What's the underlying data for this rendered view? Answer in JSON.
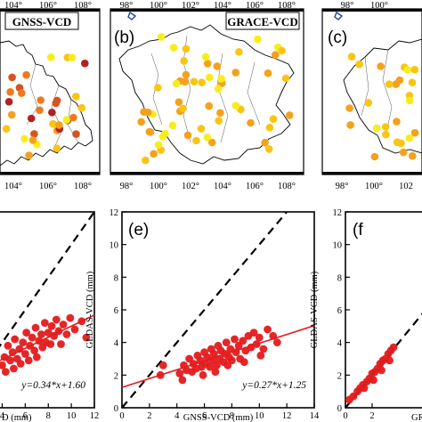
{
  "chart_data": [
    {
      "type": "map",
      "panel": "(b)",
      "title_box": "GRACE-VCD",
      "top_ticks": [
        "98°",
        "100°",
        "102°",
        "104°",
        "106°",
        "108°"
      ],
      "bottom_ticks": [
        "98°",
        "100°",
        "102°",
        "104°",
        "106°",
        "108°"
      ],
      "xlim": [
        97,
        109
      ]
    },
    {
      "type": "map",
      "panel": "",
      "title_box": "GNSS-VCD",
      "top_ticks": [
        "104°",
        "106°",
        "108°"
      ],
      "bottom_ticks": [
        "104°",
        "106°",
        "108°"
      ],
      "xlim": [
        101.6,
        109
      ]
    },
    {
      "type": "map",
      "panel": "(c)",
      "title_box": "",
      "top_ticks": [
        "98°",
        "100°"
      ],
      "bottom_ticks": [
        "98°",
        "100°",
        "102"
      ],
      "xlim": [
        97,
        109
      ]
    },
    {
      "type": "scatter",
      "panel": "",
      "xlabel": "D (mm)",
      "ylabel": "",
      "xlim": [
        3.5,
        12
      ],
      "ylim": [
        0,
        12
      ],
      "xticks": [
        "4",
        "6",
        "8",
        "10",
        "12"
      ],
      "yticks": [],
      "equation": "y=0.34*x+1.60",
      "fit": {
        "slope": 0.34,
        "intercept": 1.6
      },
      "points": [
        [
          4.0,
          2.6
        ],
        [
          4.2,
          3.1
        ],
        [
          4.3,
          2.2
        ],
        [
          4.5,
          3.8
        ],
        [
          4.7,
          2.9
        ],
        [
          4.9,
          3.4
        ],
        [
          5.0,
          2.4
        ],
        [
          5.1,
          4.2
        ],
        [
          5.3,
          3.0
        ],
        [
          5.5,
          3.6
        ],
        [
          5.6,
          2.7
        ],
        [
          5.8,
          4.0
        ],
        [
          6.0,
          3.3
        ],
        [
          6.1,
          4.6
        ],
        [
          6.3,
          2.9
        ],
        [
          6.4,
          3.8
        ],
        [
          6.6,
          4.3
        ],
        [
          6.8,
          3.5
        ],
        [
          6.9,
          4.9
        ],
        [
          7.0,
          3.1
        ],
        [
          7.2,
          4.1
        ],
        [
          7.4,
          4.5
        ],
        [
          7.5,
          3.7
        ],
        [
          7.7,
          5.2
        ],
        [
          7.8,
          4.0
        ],
        [
          8.0,
          4.6
        ],
        [
          8.2,
          3.9
        ],
        [
          8.3,
          5.0
        ],
        [
          8.5,
          4.4
        ],
        [
          8.7,
          5.4
        ],
        [
          8.9,
          4.7
        ],
        [
          9.1,
          3.9
        ],
        [
          9.3,
          5.1
        ],
        [
          9.6,
          4.5
        ],
        [
          9.9,
          5.5
        ],
        [
          10.3,
          4.8
        ],
        [
          10.9,
          5.3
        ],
        [
          11.3,
          4.3
        ]
      ]
    },
    {
      "type": "scatter",
      "panel": "(e)",
      "xlabel": "GNSS-VCD (mm)",
      "ylabel": "GLDAS-VCD (mm)",
      "xlim": [
        0,
        14
      ],
      "ylim": [
        0,
        12
      ],
      "xticks": [
        "0",
        "2",
        "4",
        "6",
        "8",
        "10",
        "12",
        "14"
      ],
      "yticks": [
        "0",
        "2",
        "4",
        "6",
        "8",
        "10",
        "12"
      ],
      "equation": "y=0.27*x+1.25",
      "fit": {
        "slope": 0.27,
        "intercept": 1.25
      },
      "points": [
        [
          2.8,
          2.0
        ],
        [
          3.0,
          2.6
        ],
        [
          4.2,
          2.1
        ],
        [
          4.5,
          2.6
        ],
        [
          4.7,
          2.3
        ],
        [
          4.9,
          3.0
        ],
        [
          5.1,
          2.2
        ],
        [
          5.2,
          2.7
        ],
        [
          5.4,
          2.4
        ],
        [
          5.5,
          3.2
        ],
        [
          5.7,
          2.9
        ],
        [
          5.8,
          2.5
        ],
        [
          6.0,
          3.4
        ],
        [
          6.1,
          2.7
        ],
        [
          6.2,
          3.1
        ],
        [
          6.4,
          2.5
        ],
        [
          6.5,
          3.6
        ],
        [
          6.6,
          2.9
        ],
        [
          6.7,
          3.3
        ],
        [
          6.9,
          2.6
        ],
        [
          7.0,
          3.8
        ],
        [
          7.1,
          3.0
        ],
        [
          7.2,
          3.5
        ],
        [
          7.4,
          2.8
        ],
        [
          7.5,
          3.3
        ],
        [
          7.6,
          4.0
        ],
        [
          7.8,
          3.1
        ],
        [
          7.9,
          3.6
        ],
        [
          8.0,
          2.9
        ],
        [
          8.2,
          4.2
        ],
        [
          8.3,
          3.4
        ],
        [
          8.5,
          3.8
        ],
        [
          8.6,
          3.0
        ],
        [
          8.8,
          4.1
        ],
        [
          9.0,
          3.5
        ],
        [
          9.2,
          4.4
        ],
        [
          9.4,
          3.7
        ],
        [
          9.6,
          4.6
        ],
        [
          9.8,
          3.9
        ],
        [
          10.0,
          4.3
        ],
        [
          10.3,
          3.6
        ],
        [
          10.6,
          4.8
        ],
        [
          11.0,
          4.4
        ],
        [
          11.3,
          4.0
        ],
        [
          4.4,
          1.7
        ],
        [
          5.9,
          2.0
        ],
        [
          6.8,
          2.2
        ],
        [
          7.7,
          2.6
        ],
        [
          8.9,
          2.8
        ],
        [
          10.1,
          3.2
        ]
      ]
    },
    {
      "type": "scatter",
      "panel": "(f",
      "xlabel": "GR",
      "ylabel": "GLDAS-VCD (mm)",
      "xlim": [
        0,
        14
      ],
      "ylim": [
        0,
        12
      ],
      "xticks": [
        "0",
        "2"
      ],
      "yticks": [
        "0",
        "2",
        "4",
        "6",
        "8",
        "10",
        "12"
      ],
      "points": [
        [
          0.3,
          0.5
        ],
        [
          0.6,
          0.7
        ],
        [
          0.9,
          1.0
        ],
        [
          1.1,
          1.2
        ],
        [
          1.3,
          1.4
        ],
        [
          1.6,
          1.6
        ],
        [
          1.8,
          1.8
        ],
        [
          2.0,
          2.1
        ],
        [
          2.2,
          2.2
        ],
        [
          2.4,
          2.4
        ],
        [
          2.6,
          2.7
        ],
        [
          2.8,
          2.9
        ],
        [
          3.0,
          3.0
        ],
        [
          3.2,
          3.3
        ],
        [
          3.4,
          3.5
        ],
        [
          3.6,
          3.7
        ],
        [
          1.4,
          1.2
        ],
        [
          2.1,
          1.7
        ],
        [
          2.7,
          2.3
        ],
        [
          3.3,
          2.9
        ]
      ]
    }
  ],
  "colors": {
    "point": "#e41a1c",
    "fit_line": "#e41a1c",
    "one_to_one": "#000000",
    "map_dot_scale": [
      "#f9ec1d",
      "#f8c513",
      "#f4a11e",
      "#ee7a1f",
      "#d9531e",
      "#b22222"
    ]
  }
}
